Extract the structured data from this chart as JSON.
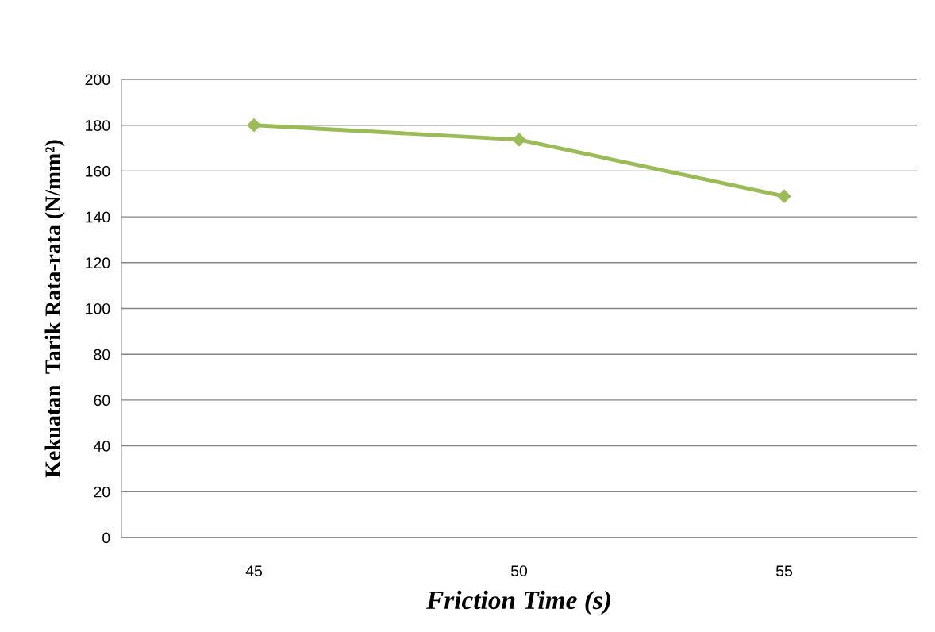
{
  "chart_data": {
    "type": "line",
    "xlabel": "Friction Time (s)",
    "ylabel": "Kekuatan  Tarik Rata-rata (N/mm²)",
    "categories": [
      "45",
      "50",
      "55"
    ],
    "series": [
      {
        "color": "#9bbb59",
        "values": [
          180,
          173.7,
          149
        ]
      }
    ],
    "ylim": [
      0,
      200
    ],
    "yticks": [
      0,
      20,
      40,
      60,
      80,
      100,
      120,
      140,
      160,
      180,
      200
    ],
    "grid": "y",
    "marker": "diamond",
    "line_style": "solid",
    "legend": false
  }
}
